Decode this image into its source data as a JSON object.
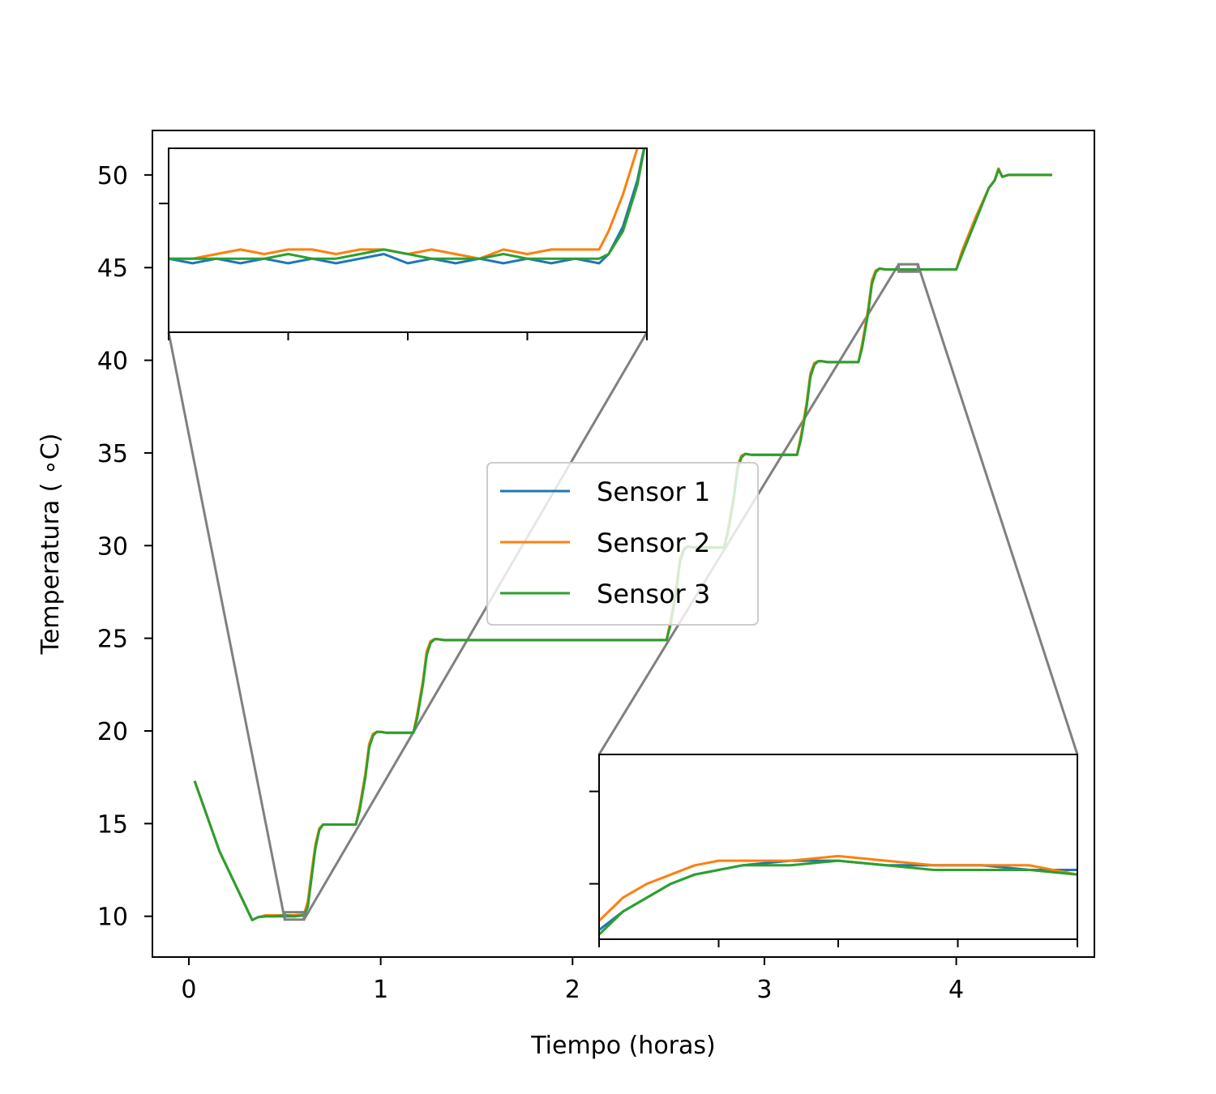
{
  "chart_data": {
    "type": "line",
    "xlabel": "Tiempo (horas)",
    "ylabel": "Temperatura ( ∘C)",
    "xlim": [
      -0.19,
      4.72
    ],
    "ylim": [
      7.8,
      52.4
    ],
    "xticks": [
      0,
      1,
      2,
      3,
      4
    ],
    "yticks": [
      10,
      15,
      20,
      25,
      30,
      35,
      40,
      45,
      50
    ],
    "xtick_labels": [
      "0",
      "1",
      "2",
      "3",
      "4"
    ],
    "ytick_labels": [
      "10",
      "15",
      "20",
      "25",
      "30",
      "35",
      "40",
      "45",
      "50"
    ],
    "legend": {
      "position": "center",
      "entries": [
        "Sensor 1",
        "Sensor 2",
        "Sensor 3"
      ]
    },
    "colors": {
      "Sensor 1": "#1f77b4",
      "Sensor 2": "#ff7f0e",
      "Sensor 3": "#2ca02c",
      "zoom": "#808080"
    },
    "series": [
      {
        "name": "Sensor 1",
        "x": [
          0.03,
          0.16,
          0.33,
          0.36,
          0.4,
          0.45,
          0.5,
          0.55,
          0.6,
          0.62,
          0.64,
          0.66,
          0.68,
          0.7,
          0.73,
          0.87,
          0.89,
          0.92,
          0.94,
          0.96,
          0.98,
          1.0,
          1.03,
          1.17,
          1.19,
          1.22,
          1.24,
          1.26,
          1.28,
          1.3,
          1.33,
          2.49,
          2.51,
          2.54,
          2.56,
          2.58,
          2.6,
          2.63,
          2.79,
          2.81,
          2.84,
          2.86,
          2.88,
          2.9,
          2.93,
          3.17,
          3.19,
          3.22,
          3.24,
          3.26,
          3.28,
          3.3,
          3.33,
          3.49,
          3.51,
          3.54,
          3.56,
          3.58,
          3.6,
          3.63,
          3.72,
          3.8,
          4.0,
          4.03,
          4.1,
          4.17,
          4.2,
          4.22,
          4.24,
          4.27,
          4.3,
          4.5
        ],
        "y": [
          17.3,
          13.5,
          9.8,
          9.95,
          10.0,
          10.0,
          10.0,
          10.0,
          10.05,
          10.6,
          12.2,
          13.8,
          14.7,
          14.95,
          14.95,
          14.95,
          15.8,
          17.6,
          19.2,
          19.8,
          19.95,
          19.95,
          19.9,
          19.9,
          20.8,
          22.6,
          24.2,
          24.8,
          24.95,
          24.95,
          24.9,
          24.9,
          25.8,
          27.6,
          29.2,
          29.8,
          29.95,
          29.9,
          29.9,
          30.8,
          32.6,
          34.2,
          34.8,
          34.95,
          34.9,
          34.9,
          35.8,
          37.6,
          39.2,
          39.8,
          39.95,
          39.95,
          39.9,
          39.9,
          40.8,
          42.6,
          44.2,
          44.8,
          44.95,
          44.9,
          44.9,
          44.9,
          44.9,
          45.8,
          47.6,
          49.3,
          49.7,
          50.3,
          49.9,
          50.0,
          50.0,
          50.0
        ]
      },
      {
        "name": "Sensor 2",
        "x": [
          0.03,
          0.16,
          0.33,
          0.36,
          0.4,
          0.45,
          0.5,
          0.55,
          0.6,
          0.62,
          0.64,
          0.66,
          0.68,
          0.7,
          0.73,
          0.87,
          0.89,
          0.92,
          0.94,
          0.96,
          0.98,
          1.0,
          1.03,
          1.17,
          1.19,
          1.22,
          1.24,
          1.26,
          1.28,
          1.3,
          1.33,
          2.49,
          2.51,
          2.54,
          2.56,
          2.58,
          2.6,
          2.63,
          2.79,
          2.81,
          2.84,
          2.86,
          2.88,
          2.9,
          2.93,
          3.17,
          3.19,
          3.22,
          3.24,
          3.26,
          3.28,
          3.3,
          3.33,
          3.49,
          3.51,
          3.54,
          3.56,
          3.58,
          3.6,
          3.63,
          3.72,
          3.8,
          4.0,
          4.03,
          4.1,
          4.17,
          4.2,
          4.22,
          4.24,
          4.27,
          4.3,
          4.5
        ],
        "y": [
          17.3,
          13.5,
          9.8,
          9.95,
          10.05,
          10.05,
          10.05,
          10.05,
          10.1,
          10.8,
          12.4,
          13.9,
          14.75,
          14.95,
          14.95,
          14.95,
          15.9,
          17.7,
          19.3,
          19.85,
          19.95,
          19.95,
          19.9,
          19.9,
          20.9,
          22.7,
          24.3,
          24.85,
          24.95,
          24.95,
          24.9,
          24.9,
          25.9,
          27.7,
          29.3,
          29.85,
          29.95,
          29.9,
          29.9,
          30.9,
          32.7,
          34.3,
          34.85,
          34.95,
          34.9,
          34.9,
          35.9,
          37.7,
          39.3,
          39.85,
          39.95,
          39.95,
          39.9,
          39.9,
          40.9,
          42.7,
          44.3,
          44.85,
          44.95,
          44.9,
          44.9,
          44.9,
          44.9,
          45.9,
          47.7,
          49.3,
          49.7,
          50.35,
          49.9,
          50.0,
          50.0,
          50.0
        ]
      },
      {
        "name": "Sensor 3",
        "x": [
          0.03,
          0.16,
          0.33,
          0.36,
          0.4,
          0.45,
          0.5,
          0.55,
          0.6,
          0.62,
          0.64,
          0.66,
          0.68,
          0.7,
          0.73,
          0.87,
          0.89,
          0.92,
          0.94,
          0.96,
          0.98,
          1.0,
          1.03,
          1.17,
          1.19,
          1.22,
          1.24,
          1.26,
          1.28,
          1.3,
          1.33,
          2.49,
          2.51,
          2.54,
          2.56,
          2.58,
          2.6,
          2.63,
          2.79,
          2.81,
          2.84,
          2.86,
          2.88,
          2.9,
          2.93,
          3.17,
          3.19,
          3.22,
          3.24,
          3.26,
          3.28,
          3.3,
          3.33,
          3.49,
          3.51,
          3.54,
          3.56,
          3.58,
          3.6,
          3.63,
          3.72,
          3.8,
          4.0,
          4.03,
          4.1,
          4.17,
          4.2,
          4.22,
          4.24,
          4.27,
          4.3,
          4.5
        ],
        "y": [
          17.3,
          13.5,
          9.8,
          9.95,
          10.0,
          10.0,
          10.05,
          10.0,
          10.05,
          10.5,
          12.1,
          13.7,
          14.65,
          14.95,
          14.95,
          14.95,
          15.7,
          17.5,
          19.1,
          19.75,
          19.95,
          19.95,
          19.9,
          19.9,
          20.7,
          22.5,
          24.1,
          24.75,
          24.95,
          24.95,
          24.9,
          24.9,
          25.7,
          27.5,
          29.1,
          29.75,
          29.95,
          29.9,
          29.9,
          30.7,
          32.5,
          34.1,
          34.75,
          34.95,
          34.9,
          34.9,
          35.7,
          37.5,
          39.1,
          39.75,
          39.95,
          39.95,
          39.9,
          39.9,
          40.7,
          42.5,
          44.1,
          44.75,
          44.95,
          44.9,
          44.9,
          44.9,
          44.9,
          45.7,
          47.5,
          49.3,
          49.7,
          50.3,
          49.9,
          50.0,
          50.0,
          50.0
        ]
      }
    ],
    "insets": [
      {
        "name": "zoom-low",
        "location": "upper-left",
        "xlim": [
          0.5,
          0.6
        ],
        "ylim": [
          9.82,
          10.22
        ],
        "xticks": [
          0.5,
          0.525,
          0.55,
          0.575,
          0.6
        ],
        "yticks": [
          10.1
        ],
        "series": [
          {
            "name": "Sensor 1",
            "x": [
              0.5,
              0.505,
              0.51,
              0.515,
              0.52,
              0.525,
              0.53,
              0.535,
              0.54,
              0.545,
              0.55,
              0.555,
              0.56,
              0.565,
              0.57,
              0.575,
              0.58,
              0.585,
              0.59,
              0.592,
              0.595,
              0.598,
              0.6
            ],
            "y": [
              9.98,
              9.97,
              9.98,
              9.97,
              9.98,
              9.97,
              9.98,
              9.97,
              9.98,
              9.99,
              9.97,
              9.98,
              9.97,
              9.98,
              9.97,
              9.98,
              9.97,
              9.98,
              9.97,
              9.99,
              10.05,
              10.15,
              10.25
            ]
          },
          {
            "name": "Sensor 2",
            "x": [
              0.5,
              0.505,
              0.51,
              0.515,
              0.52,
              0.525,
              0.53,
              0.535,
              0.54,
              0.545,
              0.55,
              0.555,
              0.56,
              0.565,
              0.57,
              0.575,
              0.58,
              0.585,
              0.59,
              0.592,
              0.595,
              0.598,
              0.6
            ],
            "y": [
              9.98,
              9.98,
              9.99,
              10.0,
              9.99,
              10.0,
              10.0,
              9.99,
              10.0,
              10.0,
              9.99,
              10.0,
              9.99,
              9.98,
              10.0,
              9.99,
              10.0,
              10.0,
              10.0,
              10.04,
              10.12,
              10.22,
              10.28
            ]
          },
          {
            "name": "Sensor 3",
            "x": [
              0.5,
              0.505,
              0.51,
              0.515,
              0.52,
              0.525,
              0.53,
              0.535,
              0.54,
              0.545,
              0.55,
              0.555,
              0.56,
              0.565,
              0.57,
              0.575,
              0.58,
              0.585,
              0.59,
              0.592,
              0.595,
              0.598,
              0.6
            ],
            "y": [
              9.98,
              9.98,
              9.98,
              9.98,
              9.98,
              9.99,
              9.98,
              9.98,
              9.99,
              10.0,
              9.99,
              9.98,
              9.98,
              9.98,
              9.99,
              9.98,
              9.98,
              9.98,
              9.98,
              9.99,
              10.04,
              10.14,
              10.25
            ]
          }
        ]
      },
      {
        "name": "zoom-high",
        "location": "lower-right",
        "xlim": [
          3.7,
          3.8
        ],
        "ylim": [
          44.78,
          45.18
        ],
        "xticks": [
          3.7,
          3.725,
          3.75,
          3.775,
          3.8
        ],
        "yticks": [
          44.9,
          45.1
        ],
        "series": [
          {
            "name": "Sensor 1",
            "x": [
              3.7,
              3.705,
              3.71,
              3.715,
              3.72,
              3.725,
              3.73,
              3.74,
              3.75,
              3.76,
              3.77,
              3.78,
              3.79,
              3.8
            ],
            "y": [
              44.8,
              44.84,
              44.87,
              44.9,
              44.92,
              44.93,
              44.94,
              44.95,
              44.95,
              44.94,
              44.94,
              44.94,
              44.93,
              44.93
            ]
          },
          {
            "name": "Sensor 2",
            "x": [
              3.7,
              3.705,
              3.71,
              3.715,
              3.72,
              3.725,
              3.73,
              3.74,
              3.75,
              3.76,
              3.77,
              3.78,
              3.79,
              3.8
            ],
            "y": [
              44.82,
              44.87,
              44.9,
              44.92,
              44.94,
              44.95,
              44.95,
              44.95,
              44.96,
              44.95,
              44.94,
              44.94,
              44.94,
              44.92
            ]
          },
          {
            "name": "Sensor 3",
            "x": [
              3.7,
              3.705,
              3.71,
              3.715,
              3.72,
              3.725,
              3.73,
              3.74,
              3.75,
              3.76,
              3.77,
              3.78,
              3.79,
              3.8
            ],
            "y": [
              44.79,
              44.84,
              44.87,
              44.9,
              44.92,
              44.93,
              44.94,
              44.94,
              44.95,
              44.94,
              44.93,
              44.93,
              44.93,
              44.92
            ]
          }
        ]
      }
    ],
    "zoom_regions": [
      {
        "inset": "zoom-low",
        "xlim": [
          0.5,
          0.6
        ],
        "ylim": [
          9.82,
          10.22
        ]
      },
      {
        "inset": "zoom-high",
        "xlim": [
          3.7,
          3.8
        ],
        "ylim": [
          44.78,
          45.18
        ]
      }
    ]
  }
}
